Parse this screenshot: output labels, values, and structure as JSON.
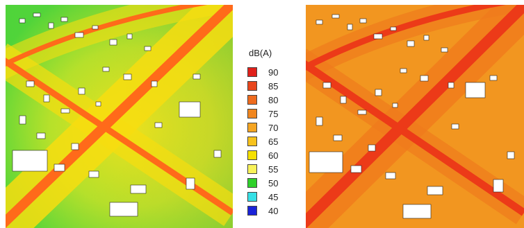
{
  "legend": {
    "title": "dB(A)",
    "items": [
      {
        "label": "90",
        "color": "#e0201a"
      },
      {
        "label": "85",
        "color": "#e8461c"
      },
      {
        "label": "80",
        "color": "#ee6b1e"
      },
      {
        "label": "75",
        "color": "#f0861f"
      },
      {
        "label": "70",
        "color": "#f5a522"
      },
      {
        "label": "65",
        "color": "#f7c21c"
      },
      {
        "label": "60",
        "color": "#f5e000"
      },
      {
        "label": "55",
        "color": "#f8f25a"
      },
      {
        "label": "50",
        "color": "#2fd12a"
      },
      {
        "label": "45",
        "color": "#36e0e6"
      },
      {
        "label": "40",
        "color": "#1a23d8"
      }
    ]
  },
  "maps": {
    "left": {
      "base_color": "#57d537",
      "road_color": "#ff6a1a",
      "halo_color": "#f7dd10"
    },
    "right": {
      "base_color": "#f29620",
      "road_color": "#ec3a18",
      "halo_color": "#f07a1c"
    }
  }
}
